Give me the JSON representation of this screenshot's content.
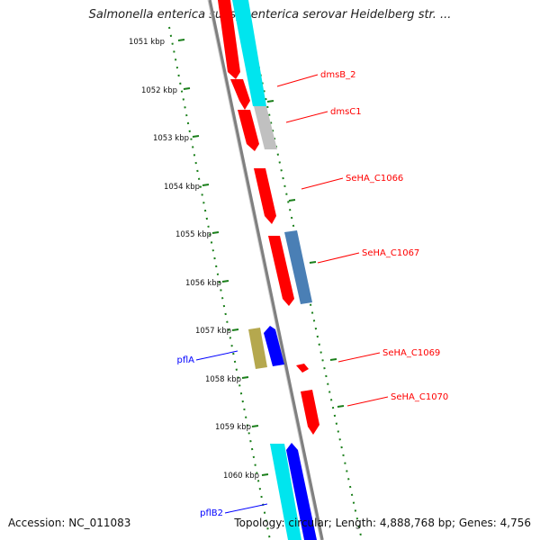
{
  "title": "Salmonella enterica subsp. enterica serovar Heidelberg str. ...",
  "footer": {
    "accession": "Accession: NC_011083",
    "summary": "Topology: circular; Length: 4,888,768 bp; Genes: 4,756"
  },
  "ticks": [
    "1051 kbp",
    "1052 kbp",
    "1053 kbp",
    "1054 kbp",
    "1055 kbp",
    "1056 kbp",
    "1057 kbp",
    "1058 kbp",
    "1059 kbp",
    "1060 kbp"
  ],
  "genes": [
    {
      "label": "dmsB_2",
      "strand": "+",
      "color": "#ff0000"
    },
    {
      "label": "dmsC1",
      "strand": "+",
      "color": "#ff0000"
    },
    {
      "label": "SeHA_C1066",
      "strand": "+",
      "color": "#ff0000"
    },
    {
      "label": "SeHA_C1067",
      "strand": "+",
      "color": "#ff0000"
    },
    {
      "label": "SeHA_C1069",
      "strand": "+",
      "color": "#ff0000"
    },
    {
      "label": "SeHA_C1070",
      "strand": "+",
      "color": "#ff0000"
    },
    {
      "label": "pflA",
      "strand": "-",
      "color": "#0000ff"
    },
    {
      "label": "pflB2",
      "strand": "-",
      "color": "#0000ff"
    }
  ],
  "colors": {
    "forward_cds": "#ff0000",
    "reverse_cds": "#0000ff",
    "backbone": "#808080",
    "tick": "#1a7f1a",
    "cyan_feature": "#00e5ee",
    "grey_feature": "#c0c0c0",
    "steelblue_feature": "#4a7fb5",
    "olive_feature": "#b5a84e"
  }
}
